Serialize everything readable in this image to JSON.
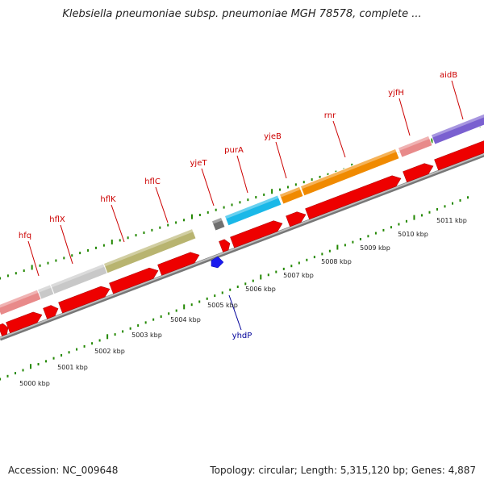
{
  "title": "Klebsiella pneumoniae subsp. pneumoniae MGH 78578, complete ...",
  "footer": {
    "accession": "Accession: NC_009648",
    "summary": "Topology: circular; Length: 5,315,120 bp; Genes: 4,887"
  },
  "colors": {
    "strand_line": "#9a9a9a",
    "gene_red": "#ee0000",
    "label_red": "#cc0000",
    "label_blue": "#000099",
    "tick_green": "#228800"
  },
  "scale_labels": [
    "5000 kbp",
    "5001 kbp",
    "5002 kbp",
    "5003 kbp",
    "5004 kbp",
    "5005 kbp",
    "5006 kbp",
    "5007 kbp",
    "5008 kbp",
    "5009 kbp",
    "5010 kbp",
    "5011 kbp"
  ],
  "genes_top": [
    {
      "name": "hfq",
      "color": "#e88a8a"
    },
    {
      "name": "hflX",
      "color": "#c8c8c8"
    },
    {
      "name": "hflK",
      "color": "#c8c8c8"
    },
    {
      "name": "hflC",
      "color": "#b8b470"
    },
    {
      "name": "yjeT",
      "color": "#707070"
    },
    {
      "name": "purA",
      "color": "#1ab8e8"
    },
    {
      "name": "yjeB",
      "color": "#f08a00"
    },
    {
      "name": "rnr",
      "color": "#f08a00"
    },
    {
      "name": "yjfH",
      "color": "#e88a8a"
    },
    {
      "name": "aidB",
      "color": "#7a60d0"
    }
  ],
  "genes_bottom": [
    {
      "name": "yhdP",
      "color": "#1a1aee"
    }
  ]
}
